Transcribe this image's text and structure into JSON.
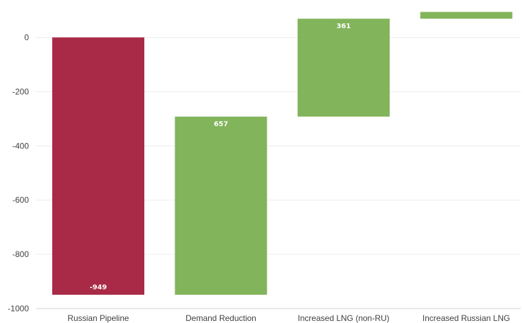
{
  "chart_data": {
    "type": "bar",
    "subtype": "waterfall",
    "categories": [
      "Russian Pipeline",
      "Demand Reduction",
      "Increased LNG (non-RU)",
      "Increased Russian LNG"
    ],
    "values": [
      -949,
      657,
      361,
      25
    ],
    "data_labels": [
      "-949",
      "657",
      "361",
      ""
    ],
    "colors": [
      "#a92a46",
      "#82b45b",
      "#82b45b",
      "#82b45b"
    ],
    "yticks": [
      0,
      -200,
      -400,
      -600,
      -800,
      -1000
    ],
    "ylim": [
      -1000,
      100
    ],
    "grid": true,
    "title": "",
    "xlabel": "",
    "ylabel": ""
  }
}
